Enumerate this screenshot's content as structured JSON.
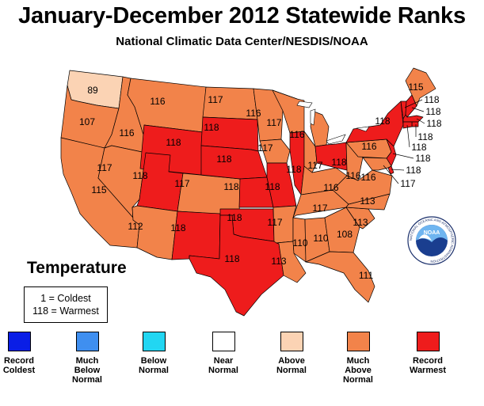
{
  "header": {
    "title": "January-December 2012 Statewide Ranks",
    "subtitle": "National Climatic Data Center/NESDIS/NOAA"
  },
  "panel": {
    "title": "Temperature",
    "key_line1": "1 = Coldest",
    "key_line2": "118 = Warmest"
  },
  "colors": {
    "record_coldest": "#0a1ee6",
    "much_below": "#3f8ff0",
    "below": "#22d6f2",
    "near": "#ffffff",
    "above": "#fbd3b4",
    "much_above": "#f2834a",
    "record_warmest": "#ee1c1c",
    "lakes": "#ffffff"
  },
  "legend": [
    {
      "label": "Record\nColdest",
      "color": "#0a1ee6"
    },
    {
      "label": "Much\nBelow\nNormal",
      "color": "#3f8ff0"
    },
    {
      "label": "Below\nNormal",
      "color": "#22d6f2"
    },
    {
      "label": "Near\nNormal",
      "color": "#ffffff"
    },
    {
      "label": "Above\nNormal",
      "color": "#fbd3b4"
    },
    {
      "label": "Much\nAbove\nNormal",
      "color": "#f2834a"
    },
    {
      "label": "Record\nWarmest",
      "color": "#ee1c1c"
    }
  ],
  "states": [
    {
      "state": "WA",
      "rank": "89",
      "category": "above"
    },
    {
      "state": "OR",
      "rank": "107",
      "category": "much_above"
    },
    {
      "state": "CA",
      "rank": "115",
      "category": "much_above"
    },
    {
      "state": "ID",
      "rank": "116",
      "category": "much_above"
    },
    {
      "state": "NV",
      "rank": "117",
      "category": "much_above"
    },
    {
      "state": "MT",
      "rank": "116",
      "category": "much_above"
    },
    {
      "state": "WY",
      "rank": "118",
      "category": "record_warmest"
    },
    {
      "state": "UT",
      "rank": "118",
      "category": "record_warmest"
    },
    {
      "state": "AZ",
      "rank": "112",
      "category": "much_above"
    },
    {
      "state": "CO",
      "rank": "117",
      "category": "much_above"
    },
    {
      "state": "NM",
      "rank": "118",
      "category": "record_warmest"
    },
    {
      "state": "ND",
      "rank": "117",
      "category": "much_above"
    },
    {
      "state": "SD",
      "rank": "118",
      "category": "record_warmest"
    },
    {
      "state": "NE",
      "rank": "118",
      "category": "record_warmest"
    },
    {
      "state": "KS",
      "rank": "118",
      "category": "record_warmest"
    },
    {
      "state": "OK",
      "rank": "118",
      "category": "record_warmest"
    },
    {
      "state": "TX",
      "rank": "118",
      "category": "record_warmest"
    },
    {
      "state": "MN",
      "rank": "116",
      "category": "much_above"
    },
    {
      "state": "IA",
      "rank": "117",
      "category": "much_above"
    },
    {
      "state": "MO",
      "rank": "118",
      "category": "record_warmest"
    },
    {
      "state": "AR",
      "rank": "117",
      "category": "much_above"
    },
    {
      "state": "LA",
      "rank": "113",
      "category": "much_above"
    },
    {
      "state": "WI",
      "rank": "117",
      "category": "much_above"
    },
    {
      "state": "IL",
      "rank": "118",
      "category": "record_warmest"
    },
    {
      "state": "MS",
      "rank": "110",
      "category": "much_above"
    },
    {
      "state": "MI",
      "rank": "116",
      "category": "much_above"
    },
    {
      "state": "IN",
      "rank": "117",
      "category": "much_above"
    },
    {
      "state": "KY",
      "rank": "116",
      "category": "much_above"
    },
    {
      "state": "TN",
      "rank": "117",
      "category": "much_above"
    },
    {
      "state": "AL",
      "rank": "110",
      "category": "much_above"
    },
    {
      "state": "OH",
      "rank": "118",
      "category": "record_warmest"
    },
    {
      "state": "GA",
      "rank": "108",
      "category": "much_above"
    },
    {
      "state": "FL",
      "rank": "111",
      "category": "much_above"
    },
    {
      "state": "SC",
      "rank": "113",
      "category": "much_above"
    },
    {
      "state": "NC",
      "rank": "113",
      "category": "much_above"
    },
    {
      "state": "VA",
      "rank": "116",
      "category": "much_above"
    },
    {
      "state": "WV",
      "rank": "116",
      "category": "much_above"
    },
    {
      "state": "PA",
      "rank": "116",
      "category": "much_above"
    },
    {
      "state": "NY",
      "rank": "118",
      "category": "record_warmest"
    },
    {
      "state": "VT",
      "rank": "118",
      "category": "record_warmest"
    },
    {
      "state": "NH",
      "rank": "118",
      "category": "record_warmest"
    },
    {
      "state": "ME",
      "rank": "115",
      "category": "much_above"
    },
    {
      "state": "MA",
      "rank": "118",
      "category": "record_warmest"
    },
    {
      "state": "RI",
      "rank": "118",
      "category": "record_warmest"
    },
    {
      "state": "CT",
      "rank": "118",
      "category": "record_warmest"
    },
    {
      "state": "NJ",
      "rank": "118",
      "category": "record_warmest"
    },
    {
      "state": "DE",
      "rank": "118",
      "category": "record_warmest"
    },
    {
      "state": "MD",
      "rank": "117",
      "category": "much_above"
    }
  ],
  "logo": {
    "text": "NOAA",
    "ring_text": "NATIONAL OCEANIC AND ATMOSPHERIC ADMINISTRATION"
  }
}
